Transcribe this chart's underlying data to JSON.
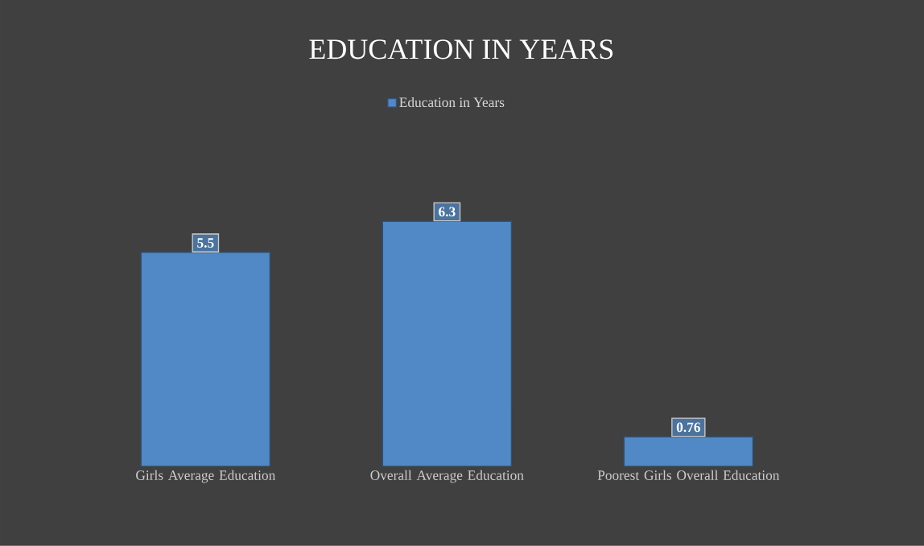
{
  "chart_data": {
    "type": "bar",
    "title": "EDUCATION IN YEARS",
    "categories": [
      "Girls Average Education",
      "Overall Average Education",
      "Poorest Girls Overall Education"
    ],
    "series": [
      {
        "name": "Education in Years",
        "color": "#5089c6",
        "values": [
          5.5,
          6.3,
          0.76
        ]
      }
    ],
    "data_labels": true,
    "legend": "top"
  }
}
